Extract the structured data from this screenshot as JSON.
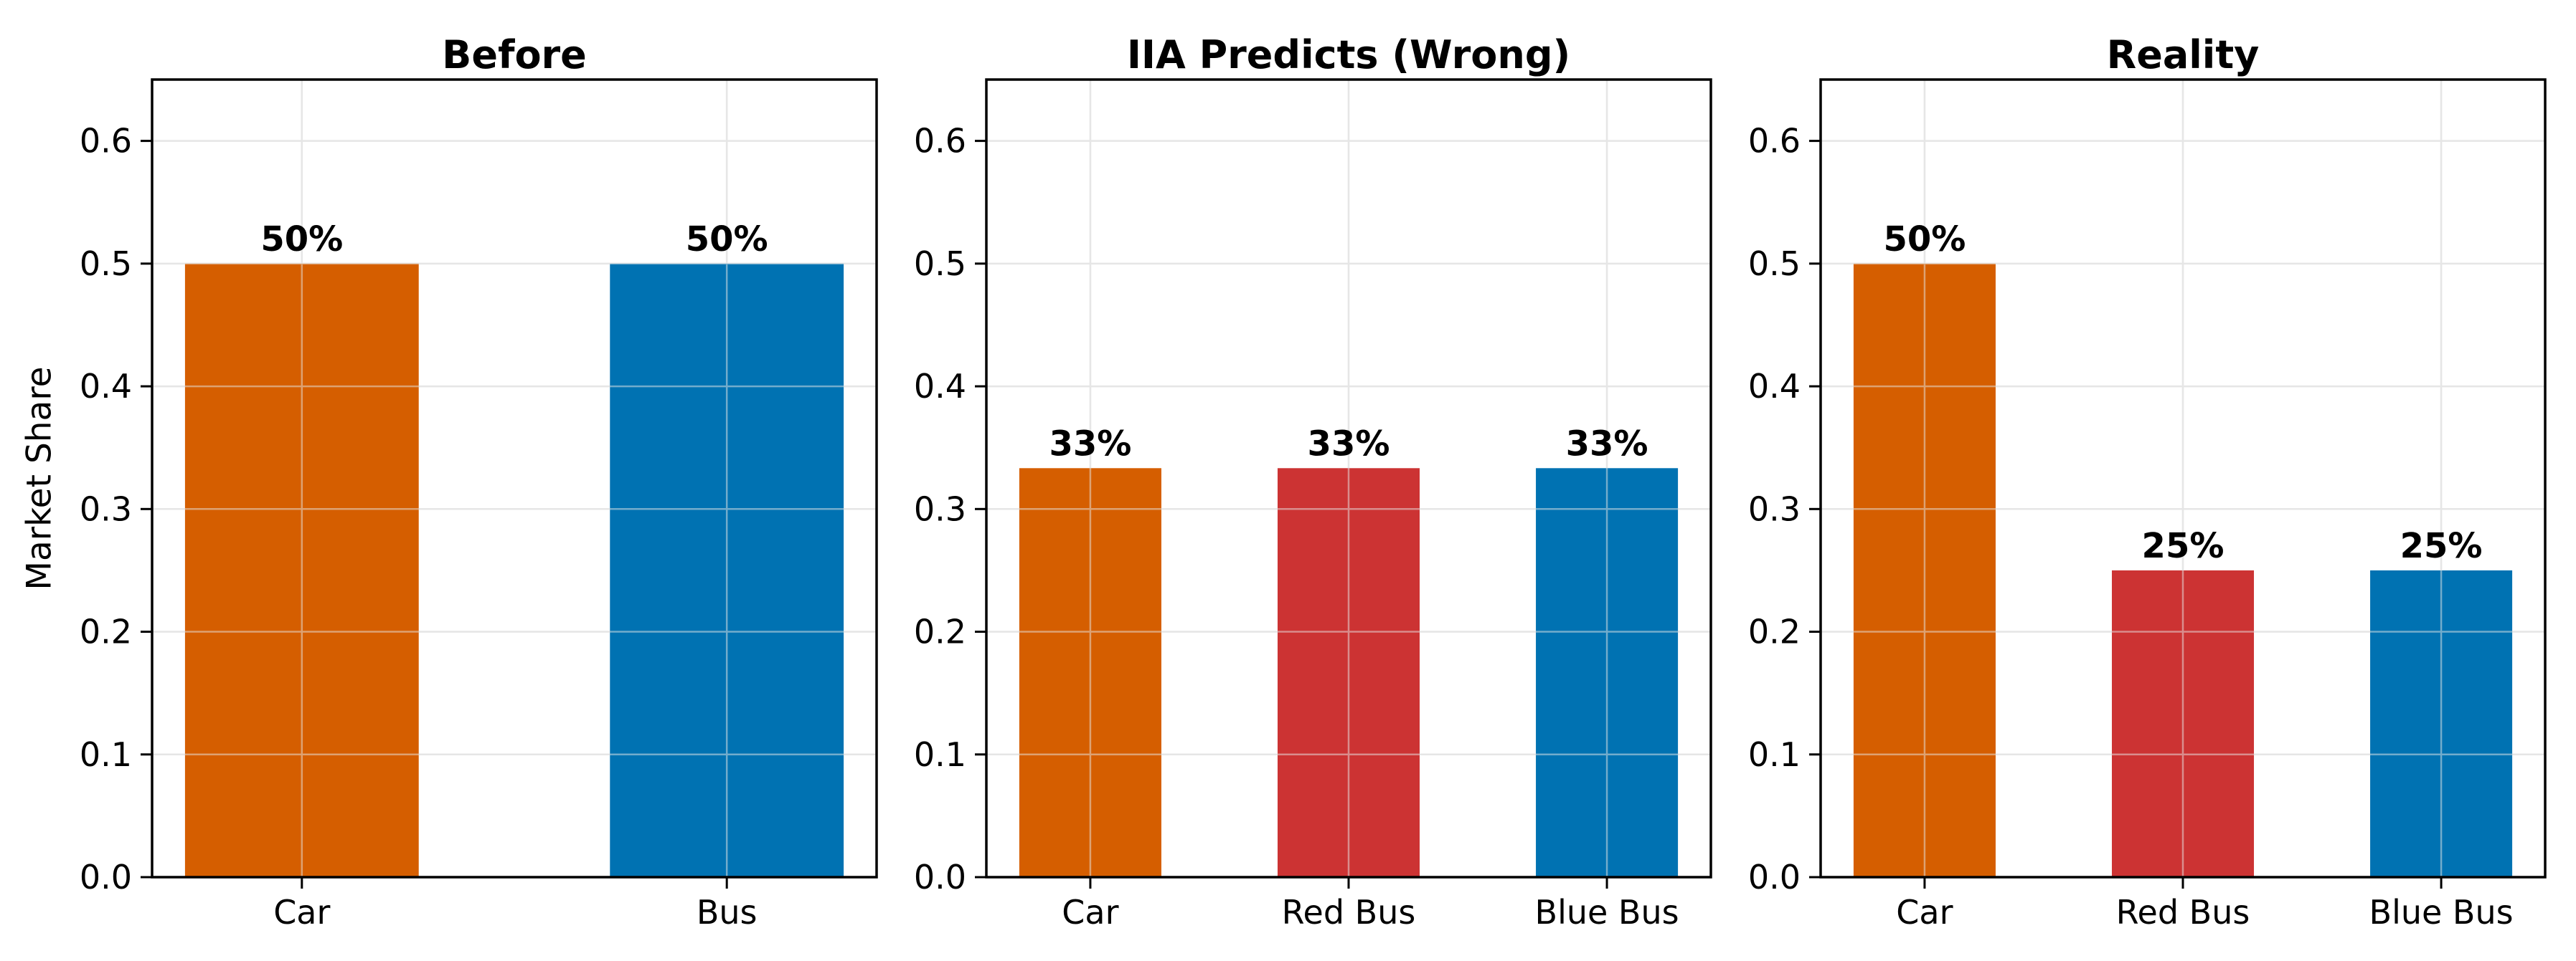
{
  "figure": {
    "background": "#ffffff",
    "ylabel": "Market Share"
  },
  "chart_data": [
    {
      "type": "bar",
      "title": "Before",
      "categories": [
        "Car",
        "Bus"
      ],
      "values": [
        0.5,
        0.5
      ],
      "bar_labels": [
        "50%",
        "50%"
      ],
      "colors": [
        "#D55E00",
        "#0072B2"
      ],
      "ylabel": "Market Share",
      "ylim": [
        0,
        0.65
      ],
      "yticks": [
        0.0,
        0.1,
        0.2,
        0.3,
        0.4,
        0.5,
        0.6
      ],
      "ytick_labels": [
        "0.0",
        "0.1",
        "0.2",
        "0.3",
        "0.4",
        "0.5",
        "0.6"
      ],
      "grid": true,
      "legend": "none"
    },
    {
      "type": "bar",
      "title": "IIA Predicts (Wrong)",
      "categories": [
        "Car",
        "Red Bus",
        "Blue Bus"
      ],
      "values": [
        0.3333,
        0.3333,
        0.3333
      ],
      "bar_labels": [
        "33%",
        "33%",
        "33%"
      ],
      "colors": [
        "#D55E00",
        "#CC3333",
        "#0072B2"
      ],
      "ylabel": "",
      "ylim": [
        0,
        0.65
      ],
      "yticks": [
        0.0,
        0.1,
        0.2,
        0.3,
        0.4,
        0.5,
        0.6
      ],
      "ytick_labels": [
        "0.0",
        "0.1",
        "0.2",
        "0.3",
        "0.4",
        "0.5",
        "0.6"
      ],
      "grid": true,
      "legend": "none"
    },
    {
      "type": "bar",
      "title": "Reality",
      "categories": [
        "Car",
        "Red Bus",
        "Blue Bus"
      ],
      "values": [
        0.5,
        0.25,
        0.25
      ],
      "bar_labels": [
        "50%",
        "25%",
        "25%"
      ],
      "colors": [
        "#D55E00",
        "#CC3333",
        "#0072B2"
      ],
      "ylabel": "",
      "ylim": [
        0,
        0.65
      ],
      "yticks": [
        0.0,
        0.1,
        0.2,
        0.3,
        0.4,
        0.5,
        0.6
      ],
      "ytick_labels": [
        "0.0",
        "0.1",
        "0.2",
        "0.3",
        "0.4",
        "0.5",
        "0.6"
      ],
      "grid": true,
      "legend": "none"
    }
  ],
  "style_colors": {
    "grid": "#E6E6E6",
    "spine": "#000000",
    "text": "#000000"
  }
}
